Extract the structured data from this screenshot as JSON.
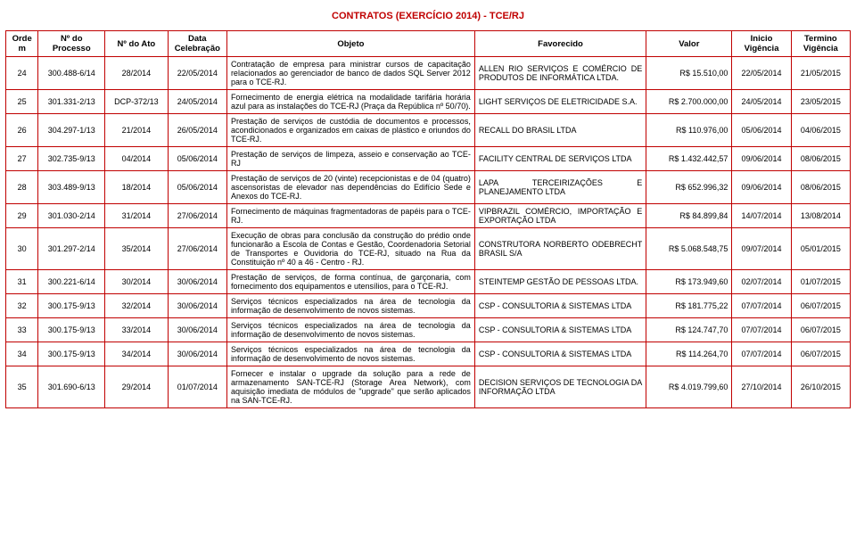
{
  "title": "CONTRATOS (EXERCÍCIO 2014) - TCE/RJ",
  "headers": {
    "ordem": "Ordem",
    "processo": "Nº do Processo",
    "ato": "Nº do Ato",
    "data": "Data Celebração",
    "objeto": "Objeto",
    "favorecido": "Favorecido",
    "valor": "Valor",
    "inicio": "Inicio Vigência",
    "termino": "Termino Vigência"
  },
  "rows": [
    {
      "ordem": "24",
      "processo": "300.488-6/14",
      "ato": "28/2014",
      "data": "22/05/2014",
      "objeto": "Contratação de empresa para ministrar cursos de capacitação relacionados ao gerenciador de banco de dados SQL Server 2012 para o TCE-RJ.",
      "favorecido": "ALLEN RIO SERVIÇOS E COMÉRCIO DE PRODUTOS DE INFORMÁTICA LTDA.",
      "valor": "R$ 15.510,00",
      "inicio": "22/05/2014",
      "termino": "21/05/2015"
    },
    {
      "ordem": "25",
      "processo": "301.331-2/13",
      "ato": "DCP-372/13",
      "data": "24/05/2014",
      "objeto": "Fornecimento de energia elétrica na modalidade tarifária horária azul para as instalações do TCE-RJ (Praça da República nº 50/70).",
      "favorecido": "LIGHT SERVIÇOS DE ELETRICIDADE S.A.",
      "valor": "R$ 2.700.000,00",
      "inicio": "24/05/2014",
      "termino": "23/05/2015"
    },
    {
      "ordem": "26",
      "processo": "304.297-1/13",
      "ato": "21/2014",
      "data": "26/05/2014",
      "objeto": "Prestação de serviços de custódia de documentos e processos, acondicionados e organizados em caixas de plástico e oriundos do TCE-RJ.",
      "favorecido": "RECALL DO BRASIL LTDA",
      "valor": "R$ 110.976,00",
      "inicio": "05/06/2014",
      "termino": "04/06/2015"
    },
    {
      "ordem": "27",
      "processo": "302.735-9/13",
      "ato": "04/2014",
      "data": "05/06/2014",
      "objeto": "Prestação de serviços de limpeza, asseio e conservação ao TCE-RJ",
      "favorecido": "FACILITY CENTRAL DE SERVIÇOS LTDA",
      "valor": "R$ 1.432.442,57",
      "inicio": "09/06/2014",
      "termino": "08/06/2015"
    },
    {
      "ordem": "28",
      "processo": "303.489-9/13",
      "ato": "18/2014",
      "data": "05/06/2014",
      "objeto": "Prestação de serviços de 20 (vinte) recepcionistas e de 04 (quatro) ascensoristas de elevador nas dependências do Edifício Sede e Anexos do TCE-RJ.",
      "favorecido": "LAPA TERCEIRIZAÇÕES E PLANEJAMENTO LTDA",
      "valor": "R$ 652.996,32",
      "inicio": "09/06/2014",
      "termino": "08/06/2015"
    },
    {
      "ordem": "29",
      "processo": "301.030-2/14",
      "ato": "31/2014",
      "data": "27/06/2014",
      "objeto": "Fornecimento de máquinas fragmentadoras de papéis para o TCE-RJ.",
      "favorecido": "VIPBRAZIL COMÉRCIO, IMPORTAÇÃO E EXPORTAÇÃO LTDA",
      "valor": "R$ 84.899,84",
      "inicio": "14/07/2014",
      "termino": "13/08/2014"
    },
    {
      "ordem": "30",
      "processo": "301.297-2/14",
      "ato": "35/2014",
      "data": "27/06/2014",
      "objeto": "Execução de obras para conclusão da construção do prédio onde funcionarão a Escola de Contas e Gestão, Coordenadoria Setorial de Transportes e Ouvidoria do TCE-RJ, situado na Rua da Constituição nº 40 a 46 - Centro - RJ.",
      "favorecido": "CONSTRUTORA NORBERTO ODEBRECHT BRASIL S/A",
      "valor": "R$ 5.068.548,75",
      "inicio": "09/07/2014",
      "termino": "05/01/2015"
    },
    {
      "ordem": "31",
      "processo": "300.221-6/14",
      "ato": "30/2014",
      "data": "30/06/2014",
      "objeto": "Prestação de serviços, de forma contínua, de garçonaria, com fornecimento dos equipamentos e utensílios, para o TCE-RJ.",
      "favorecido": "STEINTEMP GESTÃO DE PESSOAS LTDA.",
      "valor": "R$ 173.949,60",
      "inicio": "02/07/2014",
      "termino": "01/07/2015"
    },
    {
      "ordem": "32",
      "processo": "300.175-9/13",
      "ato": "32/2014",
      "data": "30/06/2014",
      "objeto": "Serviços técnicos especializados na área de tecnologia da informação de desenvolvimento de novos sistemas.",
      "favorecido": "CSP - CONSULTORIA & SISTEMAS LTDA",
      "valor": "R$ 181.775,22",
      "inicio": "07/07/2014",
      "termino": "06/07/2015"
    },
    {
      "ordem": "33",
      "processo": "300.175-9/13",
      "ato": "33/2014",
      "data": "30/06/2014",
      "objeto": "Serviços técnicos especializados na área de tecnologia da informação de desenvolvimento de novos sistemas.",
      "favorecido": "CSP - CONSULTORIA & SISTEMAS LTDA",
      "valor": "R$ 124.747,70",
      "inicio": "07/07/2014",
      "termino": "06/07/2015"
    },
    {
      "ordem": "34",
      "processo": "300.175-9/13",
      "ato": "34/2014",
      "data": "30/06/2014",
      "objeto": "Serviços técnicos especializados na área de tecnologia da informação de desenvolvimento de novos sistemas.",
      "favorecido": "CSP - CONSULTORIA & SISTEMAS LTDA",
      "valor": "R$ 114.264,70",
      "inicio": "07/07/2014",
      "termino": "06/07/2015"
    },
    {
      "ordem": "35",
      "processo": "301.690-6/13",
      "ato": "29/2014",
      "data": "01/07/2014",
      "objeto": "Fornecer e instalar o upgrade da solução para a rede de armazenamento SAN-TCE-RJ (Storage Area Network), com aquisição imediata de módulos de \"upgrade\" que serão aplicados na SAN-TCE-RJ.",
      "favorecido": "DECISION SERVIÇOS DE TECNOLOGIA DA INFORMAÇÃO LTDA",
      "valor": "R$ 4.019.799,60",
      "inicio": "27/10/2014",
      "termino": "26/10/2015"
    }
  ]
}
